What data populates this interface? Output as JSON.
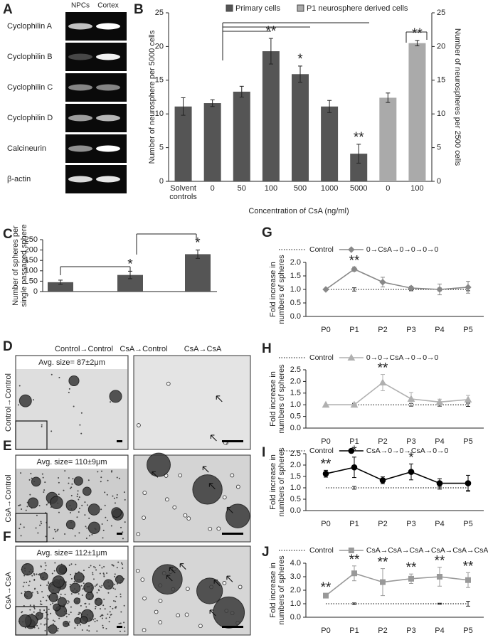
{
  "gel": {
    "label": "A",
    "columns": [
      "NPCs",
      "Cortex"
    ],
    "rows": [
      "Cyclophilin A",
      "Cyclophilin B",
      "Cyclophilin C",
      "Cyclophilin D",
      "Calcineurin",
      "β-actin"
    ]
  },
  "chart_data": [
    {
      "type": "bar",
      "label": "B",
      "categories": [
        "Solvent controls",
        "0",
        "50",
        "100",
        "500",
        "1000",
        "5000",
        "0",
        "100"
      ],
      "series": [
        {
          "name": "Primary cells",
          "color": "#555555",
          "values": [
            11.1,
            11.6,
            13.3,
            19.3,
            15.9,
            11.1,
            4.1,
            null,
            null
          ],
          "errors": [
            1.3,
            0.5,
            0.8,
            1.9,
            1.2,
            0.9,
            1.4,
            null,
            null
          ],
          "significance": [
            null,
            null,
            null,
            "**",
            "*",
            null,
            "**",
            null,
            null
          ]
        },
        {
          "name": "P1 neurosphere derived cells",
          "color": "#aaaaaa",
          "axis": "y2",
          "values": [
            null,
            null,
            null,
            null,
            null,
            null,
            null,
            12.4,
            20.5
          ],
          "errors": [
            null,
            null,
            null,
            null,
            null,
            null,
            null,
            0.7,
            0.4
          ],
          "significance": [
            null,
            null,
            null,
            null,
            null,
            null,
            null,
            null,
            "**"
          ]
        }
      ],
      "xlabel": "Concentration of CsA (ng/ml)",
      "ylabel": "Number of neurosphere per 5000 cells",
      "y2label": "Number of neurospheres per 2500 cells",
      "ylim": [
        0,
        25
      ],
      "yticks": [
        0,
        5,
        10,
        15,
        20,
        25
      ],
      "y2lim": [
        0,
        25
      ],
      "y2ticks": [
        0,
        5,
        10,
        15,
        20,
        25
      ]
    },
    {
      "type": "bar",
      "label": "C",
      "color": "#555555",
      "values": [
        45,
        80,
        180
      ],
      "errors": [
        10,
        18,
        20
      ],
      "significance": [
        null,
        "*",
        "*"
      ],
      "ylabel": [
        "Number of spheres per",
        "single passaged sphere"
      ],
      "ylim": [
        0,
        250
      ],
      "yticks": [
        0,
        50,
        100,
        150,
        200,
        250
      ]
    },
    {
      "type": "line",
      "label": "G",
      "categories": [
        "P0",
        "P1",
        "P2",
        "P3",
        "P4",
        "P5"
      ],
      "ylabel": [
        "Fold increase in",
        "numbers of spheres"
      ],
      "ylim": [
        0,
        2.0
      ],
      "yticks": [
        {
          "value": 0,
          "label": "0.0"
        },
        0.5,
        {
          "value": 1,
          "label": "1.0"
        },
        1.5,
        {
          "value": 2,
          "label": "2.0"
        }
      ],
      "series": [
        {
          "name": "Control",
          "color": "#000000",
          "dash": "dotted",
          "marker": "none",
          "values": [
            1,
            1,
            1,
            1,
            1,
            1
          ],
          "errors": [
            0,
            0.06,
            0,
            0.05,
            0.05,
            0.05
          ],
          "significance": [
            null,
            null,
            null,
            null,
            null,
            null
          ]
        },
        {
          "name": "0→CsA→0→0→0→0",
          "color": "#888888",
          "marker": "diamond",
          "values": [
            1.0,
            1.75,
            1.27,
            1.05,
            1.0,
            1.08
          ],
          "errors": [
            0,
            0.08,
            0.18,
            0.07,
            0.2,
            0.22
          ],
          "significance": [
            null,
            "**",
            null,
            null,
            null,
            null
          ]
        }
      ]
    },
    {
      "type": "line",
      "label": "H",
      "categories": [
        "P0",
        "P1",
        "P2",
        "P3",
        "P4",
        "P5"
      ],
      "ylabel": [
        "Fold increase in",
        "numbers of spheres"
      ],
      "ylim": [
        0,
        2.5
      ],
      "yticks": [
        {
          "value": 0,
          "label": "0.0"
        },
        0.5,
        {
          "value": 1,
          "label": "1.0"
        },
        1.5,
        {
          "value": 2,
          "label": "2.0"
        },
        2.5
      ],
      "series": [
        {
          "name": "Control",
          "color": "#000000",
          "dash": "dotted",
          "marker": "none",
          "values": [
            1,
            1,
            1,
            1,
            1,
            1
          ],
          "errors": [
            0,
            0.05,
            0,
            0.06,
            0.06,
            0.07
          ],
          "significance": [
            null,
            null,
            null,
            null,
            null,
            null
          ]
        },
        {
          "name": "0→0→CsA→0→0→0",
          "color": "#b0b0b0",
          "marker": "triangle",
          "values": [
            1.0,
            1.0,
            1.95,
            1.25,
            1.12,
            1.22
          ],
          "errors": [
            0,
            0.08,
            0.35,
            0.28,
            0.12,
            0.18
          ],
          "significance": [
            null,
            null,
            "**",
            null,
            null,
            null
          ]
        }
      ]
    },
    {
      "type": "line",
      "label": "I",
      "categories": [
        "P0",
        "P1",
        "P2",
        "P3",
        "P4",
        "P5"
      ],
      "ylabel": [
        "Fold increase in",
        "numbers of spheres"
      ],
      "ylim": [
        0,
        2.5
      ],
      "yticks": [
        {
          "value": 0,
          "label": "0.0"
        },
        0.5,
        {
          "value": 1,
          "label": "1.0"
        },
        1.5,
        {
          "value": 2,
          "label": "2.0"
        },
        2.5
      ],
      "series": [
        {
          "name": "Control",
          "color": "#000000",
          "dash": "dotted",
          "marker": "none",
          "values": [
            1,
            1,
            1,
            1,
            1,
            1
          ],
          "errors": [
            0,
            0.06,
            0,
            0,
            0.06,
            0.12
          ],
          "significance": [
            null,
            null,
            null,
            null,
            null,
            null
          ]
        },
        {
          "name": "CsA→0→0→CsA→0→0",
          "color": "#000000",
          "marker": "circle",
          "values": [
            1.62,
            1.9,
            1.33,
            1.7,
            1.2,
            1.2
          ],
          "errors": [
            0.15,
            0.45,
            0.15,
            0.35,
            0.2,
            0.35
          ],
          "significance": [
            "**",
            "*",
            null,
            "*",
            null,
            null
          ]
        }
      ]
    },
    {
      "type": "line",
      "label": "J",
      "categories": [
        "P0",
        "P1",
        "P2",
        "P3",
        "P4",
        "P5"
      ],
      "ylabel": [
        "Fold increase in",
        "numbers of spheres"
      ],
      "ylim": [
        0,
        4.0
      ],
      "yticks": [
        {
          "value": 0,
          "label": "0.0"
        },
        {
          "value": 1,
          "label": "1.0"
        },
        {
          "value": 2,
          "label": "2.0"
        },
        {
          "value": 3,
          "label": "3.0"
        },
        {
          "value": 4,
          "label": "4.0"
        }
      ],
      "series": [
        {
          "name": "Control",
          "color": "#000000",
          "dash": "dotted",
          "marker": "none",
          "values": [
            1,
            1,
            1,
            1,
            1,
            1
          ],
          "errors": [
            0,
            0.06,
            0,
            0,
            0.04,
            0.18
          ],
          "significance": [
            null,
            null,
            null,
            null,
            null,
            null
          ]
        },
        {
          "name": "CsA→CsA→CsA→CsA→CsA→CsA",
          "color": "#999999",
          "marker": "square",
          "values": [
            1.6,
            3.25,
            2.6,
            2.85,
            3.0,
            2.75
          ],
          "errors": [
            0.15,
            0.55,
            1.0,
            0.35,
            0.7,
            0.55
          ],
          "significance": [
            "**",
            "**",
            "**",
            "**",
            "**",
            "**"
          ]
        }
      ]
    }
  ],
  "micrographs": {
    "labels": [
      "D",
      "E",
      "F"
    ],
    "columns": [
      "Control→Control",
      "CsA→Control",
      "CsA→CsA"
    ],
    "rows": [
      "Control→Control",
      "CsA→Control",
      "CsA→CsA"
    ],
    "avg_sizes": [
      "Avg. size= 87±2μm",
      "Avg. size= 110±9μm",
      "Avg. size= 112±1μm"
    ]
  }
}
